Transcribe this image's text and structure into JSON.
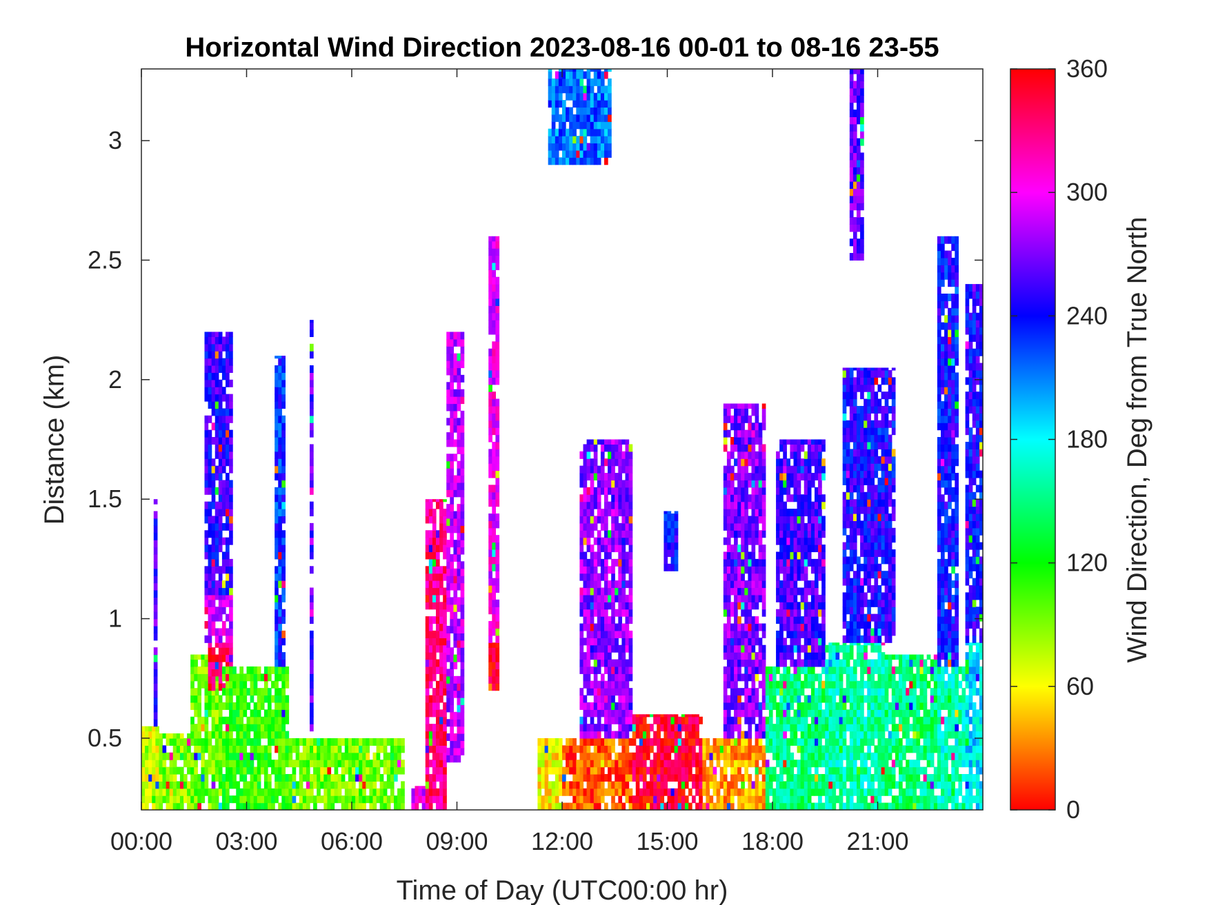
{
  "chart_data": {
    "type": "heatmap",
    "title": "Horizontal Wind Direction 2023-08-16 00-01 to 08-16 23-55",
    "xlabel": "Time of Day (UTC00:00 hr)",
    "ylabel": "Distance (km)",
    "x_range_hours": [
      0,
      24
    ],
    "ylim": [
      0.2,
      3.3
    ],
    "x_ticks": [
      {
        "hour": 0,
        "label": "00:00"
      },
      {
        "hour": 3,
        "label": "03:00"
      },
      {
        "hour": 6,
        "label": "06:00"
      },
      {
        "hour": 9,
        "label": "09:00"
      },
      {
        "hour": 12,
        "label": "12:00"
      },
      {
        "hour": 15,
        "label": "15:00"
      },
      {
        "hour": 18,
        "label": "18:00"
      },
      {
        "hour": 21,
        "label": "21:00"
      }
    ],
    "y_ticks": [
      {
        "value": 0.5,
        "label": "0.5"
      },
      {
        "value": 1,
        "label": "1"
      },
      {
        "value": 1.5,
        "label": "1.5"
      },
      {
        "value": 2,
        "label": "2"
      },
      {
        "value": 2.5,
        "label": "2.5"
      },
      {
        "value": 3,
        "label": "3"
      }
    ],
    "colorbar": {
      "label": "Wind Direction, Deg from True North",
      "range": [
        0,
        360
      ],
      "colormap": "hsv",
      "ticks": [
        {
          "value": 0,
          "label": "0"
        },
        {
          "value": 60,
          "label": "60"
        },
        {
          "value": 120,
          "label": "120"
        },
        {
          "value": 180,
          "label": "180"
        },
        {
          "value": 240,
          "label": "240"
        },
        {
          "value": 300,
          "label": "300"
        },
        {
          "value": 360,
          "label": "360"
        }
      ]
    },
    "grid": false,
    "regions": [
      {
        "t": [
          0.0,
          0.5
        ],
        "z": [
          0.2,
          0.55
        ],
        "dir": 70
      },
      {
        "t": [
          0.35,
          0.45
        ],
        "z": [
          0.55,
          1.5
        ],
        "dir": 255
      },
      {
        "t": [
          0.5,
          1.4
        ],
        "z": [
          0.2,
          0.52
        ],
        "dir": 90
      },
      {
        "t": [
          1.4,
          2.3
        ],
        "z": [
          0.2,
          0.85
        ],
        "dir": 95
      },
      {
        "t": [
          1.9,
          2.6
        ],
        "z": [
          0.7,
          0.9
        ],
        "dir": 340
      },
      {
        "t": [
          1.8,
          2.6
        ],
        "z": [
          0.9,
          1.1
        ],
        "dir": 290
      },
      {
        "t": [
          1.8,
          2.6
        ],
        "z": [
          1.1,
          2.2
        ],
        "dir": 250
      },
      {
        "t": [
          2.3,
          4.2
        ],
        "z": [
          0.2,
          0.8
        ],
        "dir": 110
      },
      {
        "t": [
          3.8,
          4.1
        ],
        "z": [
          0.8,
          2.1
        ],
        "dir": 230
      },
      {
        "t": [
          4.2,
          7.5
        ],
        "z": [
          0.2,
          0.5
        ],
        "dir": 95
      },
      {
        "t": [
          4.8,
          4.9
        ],
        "z": [
          0.5,
          2.25
        ],
        "dir": 260
      },
      {
        "t": [
          7.7,
          8.1
        ],
        "z": [
          0.2,
          0.3
        ],
        "dir": 300
      },
      {
        "t": [
          8.1,
          8.7
        ],
        "z": [
          0.2,
          1.5
        ],
        "dir": 330
      },
      {
        "t": [
          8.7,
          9.2
        ],
        "z": [
          0.4,
          2.2
        ],
        "dir": 285
      },
      {
        "t": [
          9.9,
          10.2
        ],
        "z": [
          0.7,
          0.9
        ],
        "dir": 350
      },
      {
        "t": [
          9.9,
          10.2
        ],
        "z": [
          0.9,
          2.6
        ],
        "dir": 300
      },
      {
        "t": [
          11.3,
          12.0
        ],
        "z": [
          0.2,
          0.5
        ],
        "dir": 60
      },
      {
        "t": [
          11.6,
          13.4
        ],
        "z": [
          2.9,
          3.3
        ],
        "dir": 215
      },
      {
        "t": [
          12.0,
          14.0
        ],
        "z": [
          0.2,
          0.5
        ],
        "dir": 20
      },
      {
        "t": [
          12.5,
          14.0
        ],
        "z": [
          0.5,
          1.75
        ],
        "dir": 275
      },
      {
        "t": [
          14.0,
          16.0
        ],
        "z": [
          0.2,
          0.6
        ],
        "dir": 350
      },
      {
        "t": [
          14.9,
          15.3
        ],
        "z": [
          1.2,
          1.45
        ],
        "dir": 240
      },
      {
        "t": [
          16.0,
          17.8
        ],
        "z": [
          0.2,
          0.5
        ],
        "dir": 40
      },
      {
        "t": [
          16.6,
          17.8
        ],
        "z": [
          0.5,
          1.9
        ],
        "dir": 270
      },
      {
        "t": [
          17.8,
          20.0
        ],
        "z": [
          0.2,
          0.8
        ],
        "dir": 150
      },
      {
        "t": [
          18.1,
          19.5
        ],
        "z": [
          0.8,
          1.75
        ],
        "dir": 255
      },
      {
        "t": [
          19.5,
          21.2
        ],
        "z": [
          0.2,
          0.9
        ],
        "dir": 160
      },
      {
        "t": [
          20.2,
          20.6
        ],
        "z": [
          2.5,
          3.3
        ],
        "dir": 265
      },
      {
        "t": [
          20.0,
          21.5
        ],
        "z": [
          0.9,
          2.05
        ],
        "dir": 245
      },
      {
        "t": [
          21.2,
          22.7
        ],
        "z": [
          0.2,
          0.85
        ],
        "dir": 150
      },
      {
        "t": [
          22.7,
          23.5
        ],
        "z": [
          0.2,
          0.8
        ],
        "dir": 165
      },
      {
        "t": [
          22.7,
          23.3
        ],
        "z": [
          0.8,
          2.6
        ],
        "dir": 240
      },
      {
        "t": [
          23.5,
          24.0
        ],
        "z": [
          0.2,
          0.9
        ],
        "dir": 185
      },
      {
        "t": [
          23.5,
          24.0
        ],
        "z": [
          0.9,
          2.4
        ],
        "dir": 245
      }
    ]
  }
}
